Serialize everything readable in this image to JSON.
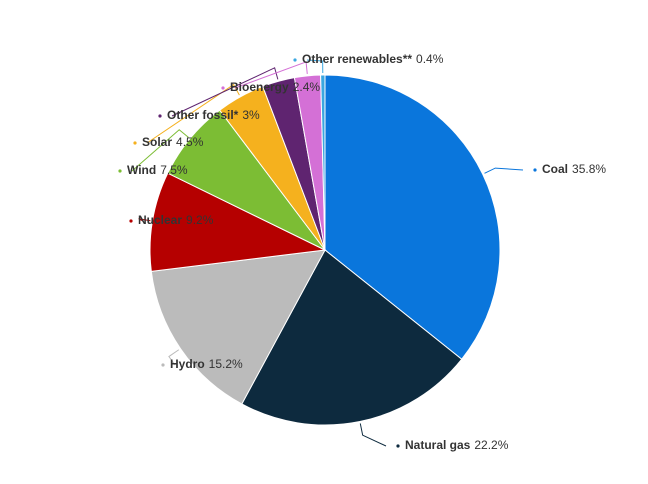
{
  "chart_data": {
    "type": "pie",
    "categories": [
      "Coal",
      "Natural gas",
      "Hydro",
      "Nuclear",
      "Wind",
      "Solar",
      "Other fossil*",
      "Bioenergy",
      "Other renewables**"
    ],
    "values": [
      35.8,
      22.2,
      15.2,
      9.2,
      7.5,
      4.5,
      3,
      2.4,
      0.4
    ],
    "value_labels": [
      "35.8%",
      "22.2%",
      "15.2%",
      "9.2%",
      "7.5%",
      "4.5%",
      "3%",
      "2.4%",
      "0.4%"
    ],
    "colors": [
      "#0a76dc",
      "#0d2a3e",
      "#bbbbbb",
      "#b50000",
      "#7cbd34",
      "#f5b11e",
      "#5f2470",
      "#d470d6",
      "#3ba7e0"
    ]
  }
}
